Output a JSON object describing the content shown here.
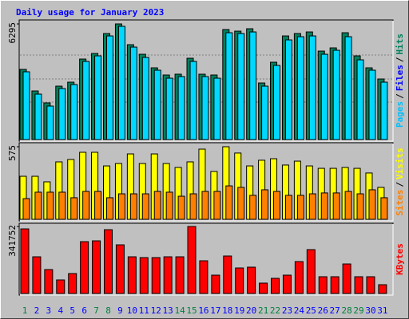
{
  "chart_data": {
    "type": "bar",
    "title": "Daily usage for January 2023",
    "categories": [
      "1",
      "2",
      "3",
      "4",
      "5",
      "6",
      "7",
      "8",
      "9",
      "10",
      "11",
      "12",
      "13",
      "14",
      "15",
      "16",
      "17",
      "18",
      "19",
      "20",
      "21",
      "22",
      "23",
      "24",
      "25",
      "26",
      "27",
      "28",
      "29",
      "30",
      "31"
    ],
    "weekend_indices": [
      0,
      6,
      7,
      13,
      14,
      20,
      21,
      27,
      28
    ],
    "weekend_color": "#008040",
    "category_color": "#0000ff",
    "panels": [
      {
        "ylim": [
          0,
          6295
        ],
        "yticks": [
          6295
        ],
        "legend": [
          {
            "text": "Pages",
            "color": "#00c0ff"
          },
          {
            "text": "/",
            "color": "#000000"
          },
          {
            "text": "Files",
            "color": "#0000ff"
          },
          {
            "text": "/",
            "color": "#000000"
          },
          {
            "text": "Hits",
            "color": "#00805c"
          }
        ],
        "series": [
          {
            "color": "#00805c",
            "values": [
              3820,
              2647,
              1997,
              2908,
              3125,
              4383,
              4687,
              5772,
              6295,
              5165,
              4644,
              3906,
              3515,
              3559,
              4427,
              3559,
              3515,
              5990,
              5902,
              6033,
              3081,
              4210,
              5642,
              5772,
              5859,
              4817,
              4991,
              5816,
              4557,
              3906,
              3298
            ]
          },
          {
            "color": "#00d8ff",
            "values": [
              3690,
              2474,
              1823,
              2778,
              2995,
              4253,
              4557,
              5642,
              6164,
              5034,
              4470,
              3776,
              3342,
              3429,
              4253,
              3429,
              3342,
              5816,
              5772,
              5859,
              2908,
              4036,
              5425,
              5599,
              5642,
              4644,
              4861,
              5599,
              4340,
              3776,
              3125
            ]
          }
        ]
      },
      {
        "ylim": [
          0,
          575
        ],
        "yticks": [
          575
        ],
        "legend": [
          {
            "text": "Sites",
            "color": "#ff8000"
          },
          {
            "text": "/",
            "color": "#000000"
          },
          {
            "text": "Visits",
            "color": "#ffff00"
          }
        ],
        "series": [
          {
            "color": "#ffff00",
            "values": [
              341,
              341,
              297,
              455,
              474,
              531,
              531,
              423,
              442,
              518,
              442,
              518,
              442,
              411,
              455,
              556,
              379,
              575,
              525,
              423,
              468,
              480,
              430,
              461,
              423,
              404,
              404,
              411,
              404,
              367,
              253
            ]
          },
          {
            "color": "#ff8000",
            "values": [
              164,
              215,
              215,
              215,
              171,
              221,
              221,
              171,
              202,
              202,
              202,
              221,
              215,
              183,
              202,
              221,
              221,
              265,
              253,
              190,
              234,
              221,
              190,
              190,
              202,
              209,
              209,
              221,
              202,
              234,
              171
            ]
          }
        ]
      },
      {
        "ylim": [
          0,
          341752
        ],
        "yticks": [
          341752
        ],
        "legend": [
          {
            "text": "KBytes",
            "color": "#ff0000"
          }
        ],
        "series": [
          {
            "color": "#ff0000",
            "values": [
              329508,
              187128,
              122040,
              69156,
              101700,
              264420,
              268488,
              325440,
              248148,
              187128,
              183060,
              183060,
              187128,
              187128,
              341752,
              166788,
              93564,
              191196,
              130176,
              134244,
              52884,
              77292,
              93564,
              162720,
              223740,
              85428,
              85428,
              150516,
              85428,
              85428,
              44748
            ]
          }
        ]
      }
    ]
  }
}
